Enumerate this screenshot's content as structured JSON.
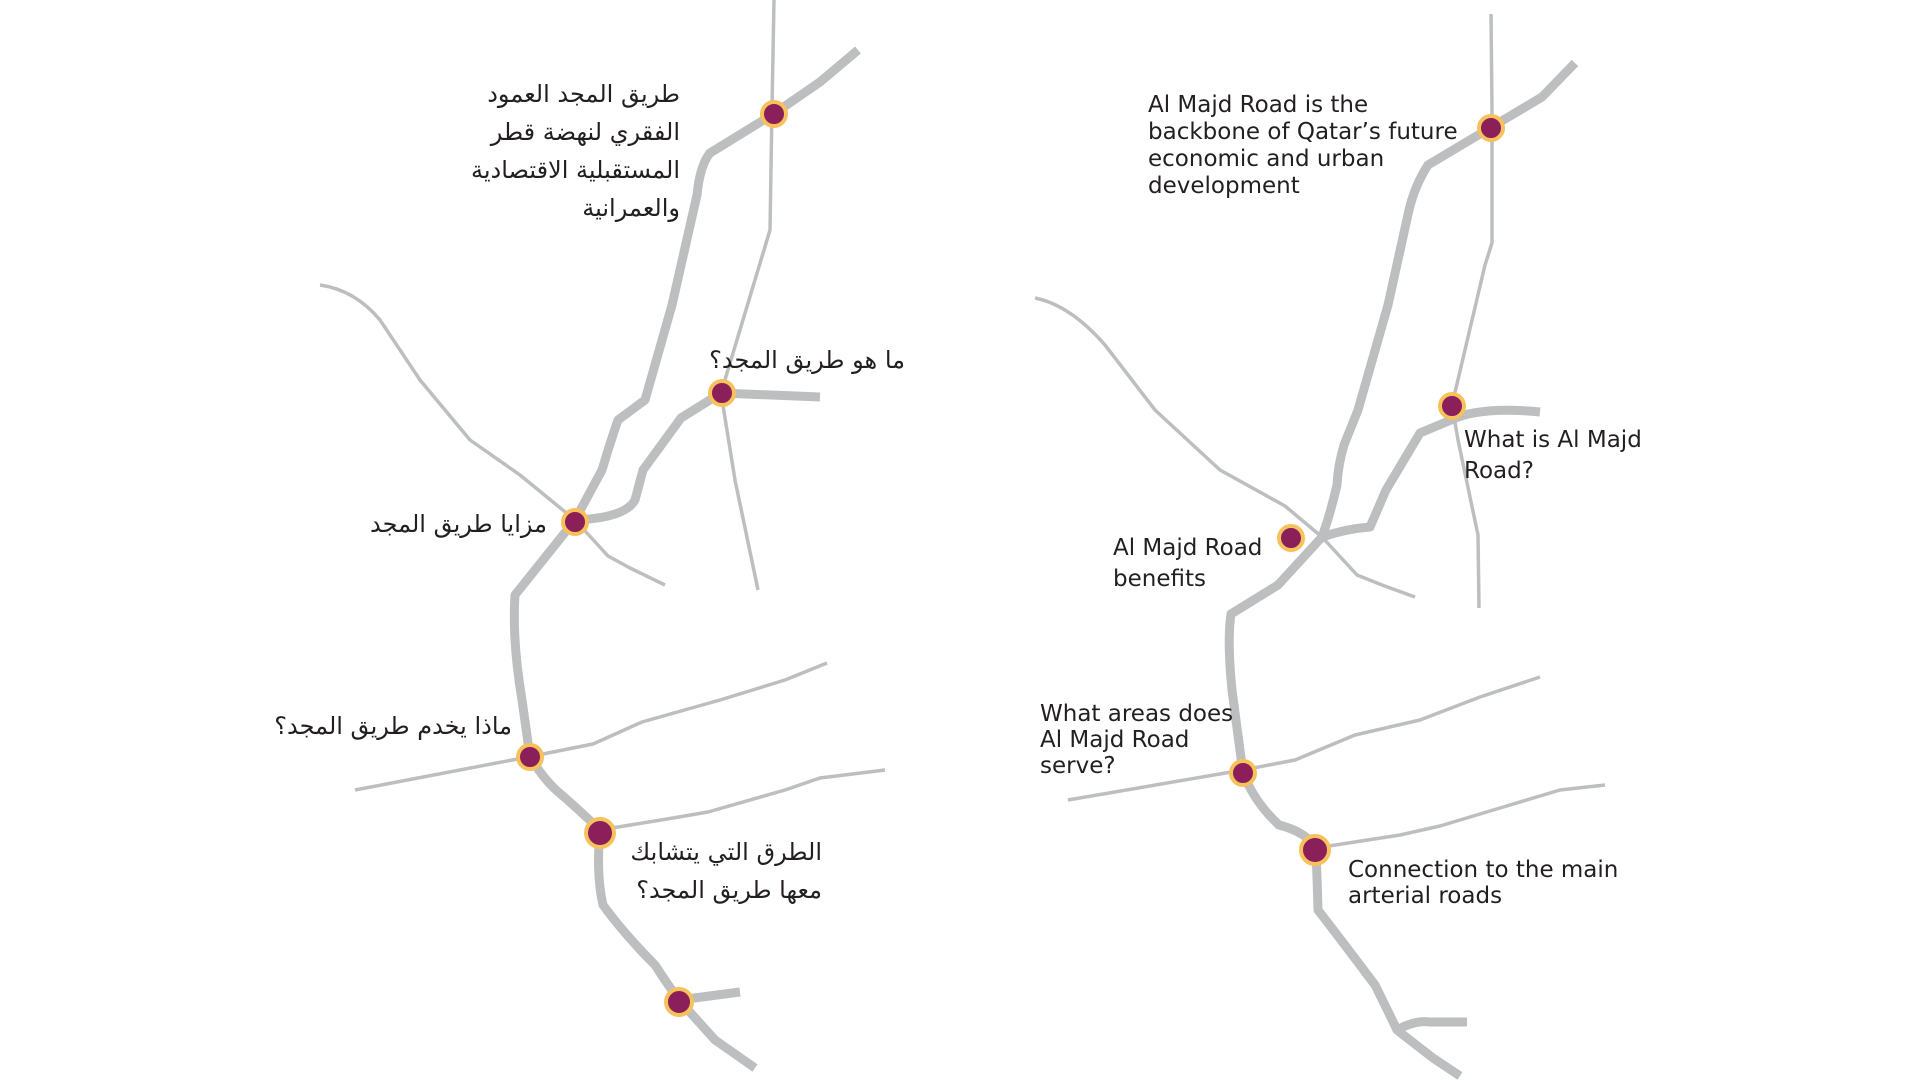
{
  "arabic_panel": {
    "backbone": {
      "lines": [
        "طريق المجد العمود",
        "الفقري لنهضة قطر",
        "المستقبلية الاقتصادية",
        "والعمرانية"
      ]
    },
    "what_is": {
      "lines": [
        "ما هو طريق المجد؟"
      ]
    },
    "benefits": {
      "lines": [
        "مزايا طريق المجد"
      ]
    },
    "areas": {
      "lines": [
        "ماذا يخدم طريق المجد؟"
      ]
    },
    "connections": {
      "lines": [
        "الطرق التي يتشابك",
        "معها طريق المجد؟"
      ]
    }
  },
  "english_panel": {
    "backbone": {
      "lines": [
        "Al Majd Road is the",
        "backbone of Qatar’s future",
        "economic and urban",
        "development"
      ]
    },
    "what_is": {
      "lines": [
        "What is Al Majd",
        "Road?"
      ]
    },
    "benefits": {
      "lines": [
        "Al Majd Road",
        "benefits"
      ]
    },
    "areas": {
      "lines": [
        "What areas does",
        "Al Majd Road",
        "serve?"
      ]
    },
    "connections": {
      "lines": [
        "Connection to the main",
        "arterial roads"
      ]
    }
  },
  "colors": {
    "road": "#bcbec0",
    "node_fill": "#8a1f5a",
    "node_ring": "#f7c15c",
    "text": "#231f20"
  }
}
